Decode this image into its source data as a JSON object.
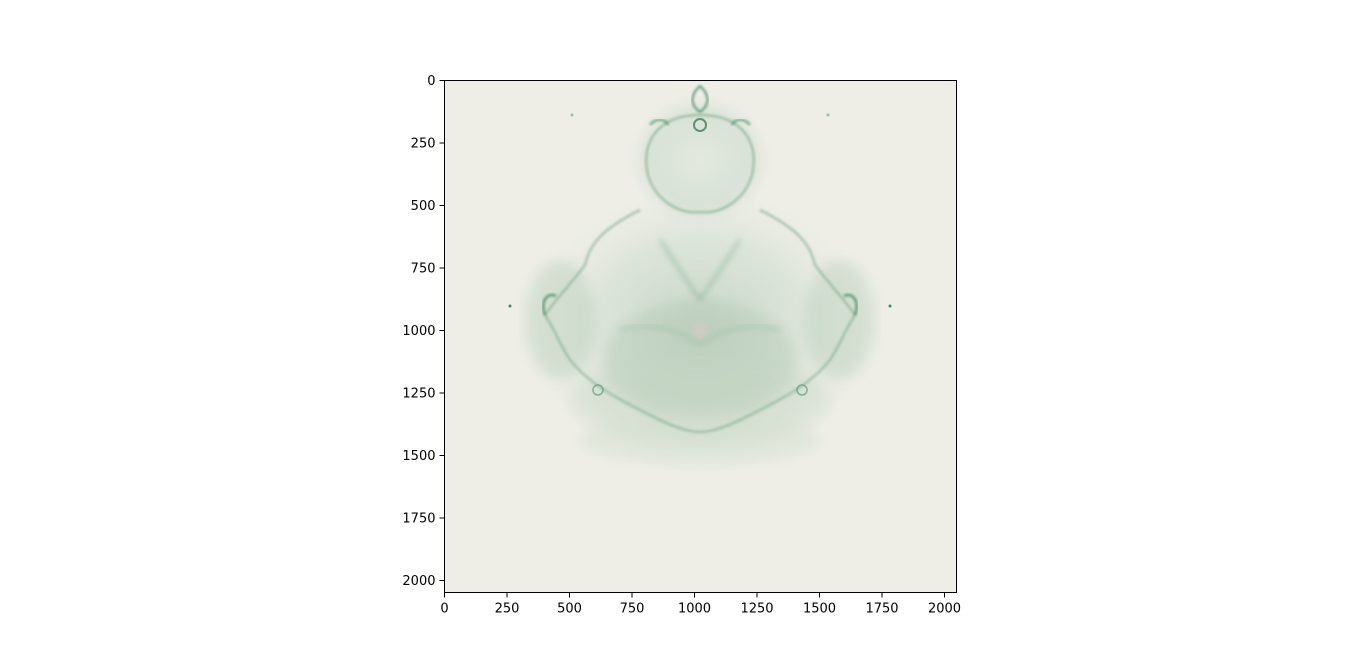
{
  "chart_data": {
    "type": "heatmap",
    "title": "",
    "xlabel": "",
    "ylabel": "",
    "xlim": [
      0,
      2048
    ],
    "ylim": [
      2048,
      0
    ],
    "y_axis_inverted": true,
    "x_ticks": [
      0,
      250,
      500,
      750,
      1000,
      1250,
      1500,
      1750,
      2000
    ],
    "y_ticks": [
      0,
      250,
      500,
      750,
      1000,
      1250,
      1500,
      1750,
      2000
    ],
    "x_tick_labels": [
      "0",
      "250",
      "500",
      "750",
      "1000",
      "1250",
      "1500",
      "1750",
      "2000"
    ],
    "y_tick_labels": [
      "0",
      "250",
      "500",
      "750",
      "1000",
      "1250",
      "1500",
      "1750",
      "2000"
    ],
    "grid": false,
    "legend": "none",
    "image_content": "Buddhabrot-style fractal density image",
    "colors": {
      "background": "#eeeee6",
      "density_low": "#d6e2d8",
      "density_mid": "#a9c8b2",
      "density_high": "#4f8f68",
      "axis": "#000000"
    }
  }
}
